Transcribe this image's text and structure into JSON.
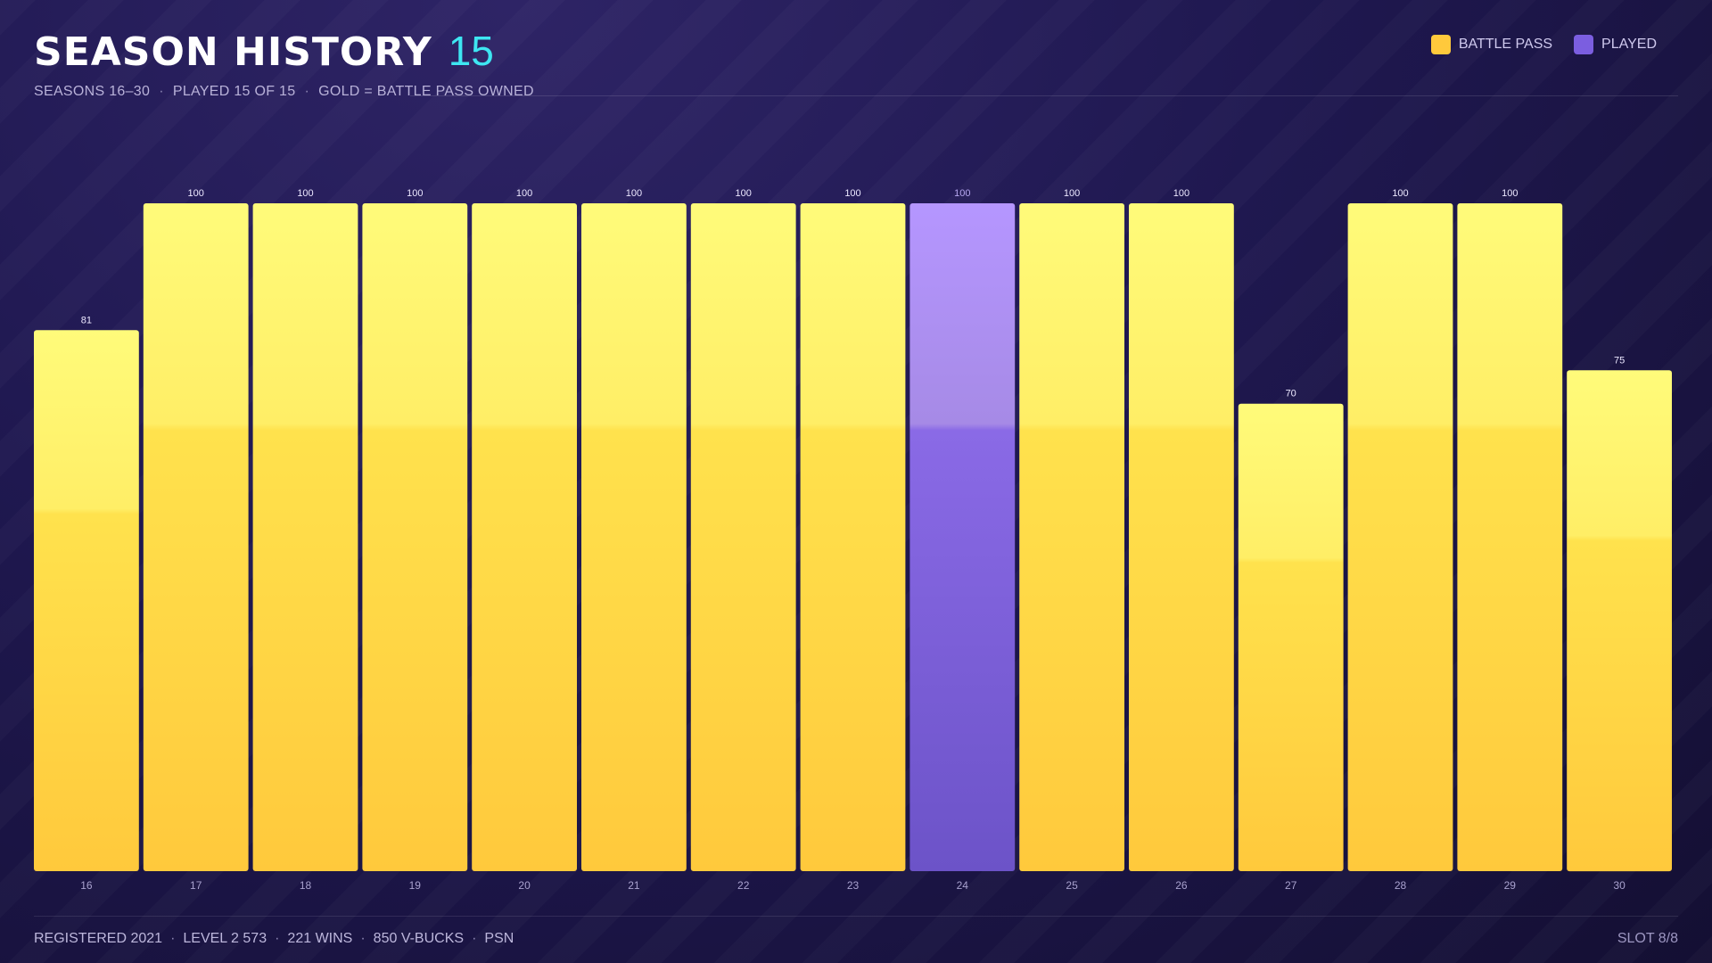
{
  "header": {
    "title": "SEASON HISTORY",
    "count": "15",
    "subtitle_parts": [
      "SEASONS 16–30",
      "PLAYED 15 OF 15",
      "GOLD = BATTLE PASS OWNED"
    ]
  },
  "legend": {
    "items": [
      {
        "label": "BATTLE PASS",
        "color": "#ffc93c"
      },
      {
        "label": "PLAYED",
        "color": "#7b5ee0"
      }
    ]
  },
  "chart_data": {
    "type": "bar",
    "categories": [
      "16",
      "17",
      "18",
      "19",
      "20",
      "21",
      "22",
      "23",
      "24",
      "25",
      "26",
      "27",
      "28",
      "29",
      "30"
    ],
    "values": [
      81,
      100,
      100,
      100,
      100,
      100,
      100,
      100,
      100,
      100,
      100,
      70,
      100,
      100,
      75
    ],
    "battle_pass": [
      true,
      true,
      true,
      true,
      true,
      true,
      true,
      true,
      false,
      true,
      true,
      true,
      true,
      true,
      true
    ],
    "ylim": [
      0,
      100
    ],
    "grid": false,
    "legend_position": "top-right"
  },
  "footer": {
    "stats": [
      "REGISTERED 2021",
      "LEVEL 2 573",
      "221 WINS",
      "850 V-BUCKS",
      "PSN"
    ],
    "slot": "SLOT 8/8"
  }
}
